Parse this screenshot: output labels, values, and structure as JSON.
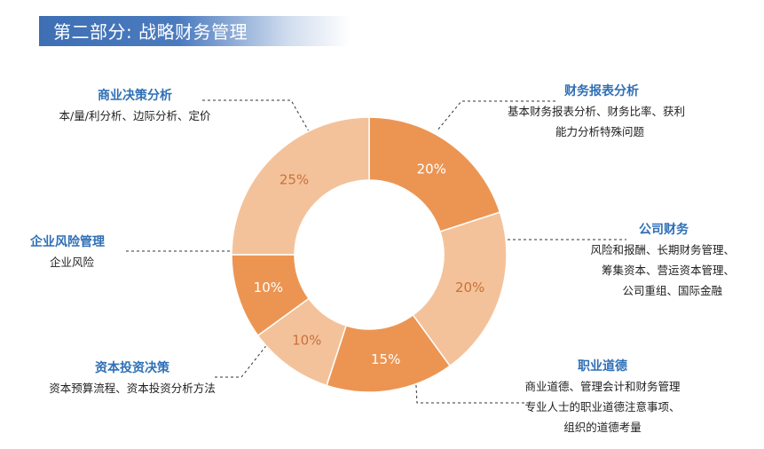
{
  "header": {
    "title": "第二部分: 战略财务管理"
  },
  "chart_data": {
    "type": "pie",
    "style": "donut",
    "slices": [
      {
        "name": "财务报表分析",
        "value": 20,
        "label": "20%",
        "color": "#ec9553"
      },
      {
        "name": "公司财务",
        "value": 20,
        "label": "20%",
        "color": "#f4c29a"
      },
      {
        "name": "职业道德",
        "value": 15,
        "label": "15%",
        "color": "#ec9553"
      },
      {
        "name": "资本投资决策",
        "value": 10,
        "label": "10%",
        "color": "#f4c29a"
      },
      {
        "name": "企业风险管理",
        "value": 10,
        "label": "10%",
        "color": "#ec9553"
      },
      {
        "name": "商业决策分析",
        "value": 25,
        "label": "25%",
        "color": "#f4c29a"
      }
    ]
  },
  "categories": {
    "business_decision": {
      "title": "商业决策分析",
      "lines": [
        "本/量/利分析、边际分析、定价"
      ]
    },
    "financial_statement": {
      "title": "财务报表分析",
      "lines": [
        "基本财务报表分析、财务比率、获利",
        "能力分析特殊问题"
      ]
    },
    "enterprise_risk": {
      "title": "企业风险管理",
      "lines": [
        "企业风险"
      ]
    },
    "corporate_finance": {
      "title": "公司财务",
      "lines": [
        "风险和报酬、长期财务管理、",
        "筹集资本、营运资本管理、",
        "公司重组、国际金融"
      ]
    },
    "capital_investment": {
      "title": "资本投资决策",
      "lines": [
        "资本预算流程、资本投资分析方法"
      ]
    },
    "professional_ethics": {
      "title": "职业道德",
      "lines": [
        "商业道德、管理会计和财务管理",
        "专业人士的职业道德注意事项、",
        "组织的道德考量"
      ]
    }
  }
}
